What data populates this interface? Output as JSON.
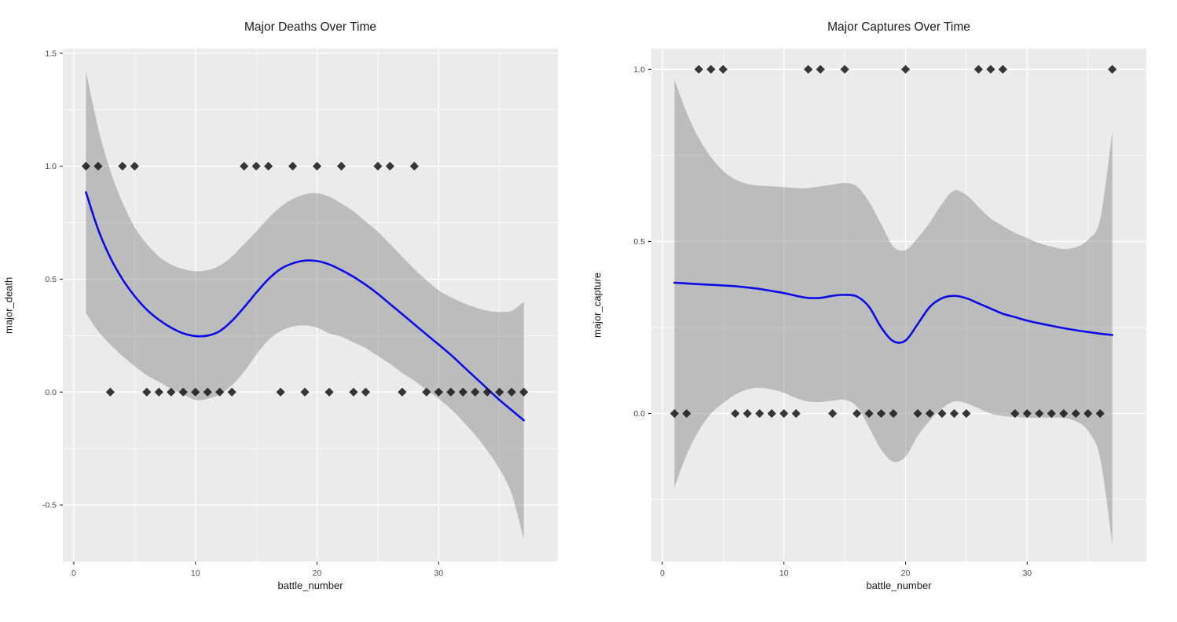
{
  "page": {
    "background": "#FFFFFF"
  },
  "style": {
    "panel_bg": "#EBEBEB",
    "grid_color": "#FFFFFF",
    "band_color": "#7C7C7C",
    "band_opacity": 0.42,
    "line_color": "#0B0BE8",
    "marker_color": "#151515",
    "marker_opacity": 0.85,
    "tick_text_color": "#4D4D4D",
    "tick_mark_color": "#333333",
    "text_color": "#1A1A1A"
  },
  "chart_data": [
    {
      "type": "scatter",
      "subtype": "scatter-with-loess-smooth-and-ci-band",
      "title": "Major Deaths Over Time",
      "xlabel": "battle_number",
      "ylabel": "major_death",
      "xlim": [
        -0.9,
        39.8
      ],
      "ylim": [
        -0.75,
        1.52
      ],
      "grid": true,
      "legend": "none",
      "x_ticks": {
        "values": [
          0,
          10,
          20,
          30
        ],
        "labels": [
          "0",
          "10",
          "20",
          "30"
        ]
      },
      "x_minor": [
        5,
        15,
        25,
        35
      ],
      "y_ticks": {
        "values": [
          1.5,
          1.0,
          0.5,
          0.0,
          -0.5
        ],
        "labels": [
          "1.5",
          "1.0",
          "0.5",
          "0.0",
          "-0.5"
        ]
      },
      "y_minor": [
        1.25,
        0.75,
        0.25,
        -0.25
      ],
      "points": {
        "x": [
          1,
          2,
          3,
          4,
          5,
          6,
          7,
          8,
          9,
          10,
          11,
          12,
          13,
          14,
          15,
          16,
          17,
          18,
          19,
          20,
          21,
          22,
          23,
          24,
          25,
          26,
          27,
          28,
          29,
          30,
          31,
          32,
          33,
          34,
          35,
          36,
          37
        ],
        "y": [
          1,
          1,
          0,
          1,
          1,
          0,
          0,
          0,
          0,
          0,
          0,
          0,
          0,
          1,
          1,
          1,
          0,
          1,
          0,
          1,
          0,
          1,
          0,
          0,
          1,
          1,
          0,
          1,
          0,
          0,
          0,
          0,
          0,
          0,
          0,
          0,
          0
        ]
      },
      "smooth": {
        "x": [
          1,
          2,
          3,
          4,
          5,
          6,
          7,
          8,
          9,
          10,
          11,
          12,
          13,
          14,
          15,
          16,
          17,
          18,
          19,
          20,
          21,
          22,
          23,
          24,
          25,
          26,
          27,
          28,
          29,
          30,
          31,
          32,
          33,
          34,
          35,
          36,
          37
        ],
        "y": [
          0.885,
          0.72,
          0.595,
          0.5,
          0.425,
          0.365,
          0.32,
          0.285,
          0.26,
          0.248,
          0.25,
          0.27,
          0.315,
          0.375,
          0.44,
          0.5,
          0.545,
          0.57,
          0.582,
          0.58,
          0.565,
          0.54,
          0.51,
          0.475,
          0.435,
          0.39,
          0.345,
          0.3,
          0.255,
          0.21,
          0.165,
          0.115,
          0.065,
          0.015,
          -0.035,
          -0.08,
          -0.125
        ]
      },
      "band": {
        "x": [
          1,
          2,
          3,
          4,
          5,
          6,
          7,
          8,
          9,
          10,
          11,
          12,
          13,
          14,
          15,
          16,
          17,
          18,
          19,
          20,
          21,
          22,
          23,
          24,
          25,
          26,
          27,
          28,
          29,
          30,
          31,
          32,
          33,
          34,
          35,
          36,
          37
        ],
        "upper": [
          1.42,
          1.17,
          0.98,
          0.84,
          0.73,
          0.655,
          0.6,
          0.565,
          0.545,
          0.535,
          0.54,
          0.56,
          0.6,
          0.655,
          0.71,
          0.77,
          0.82,
          0.855,
          0.875,
          0.88,
          0.865,
          0.835,
          0.8,
          0.755,
          0.71,
          0.655,
          0.6,
          0.545,
          0.495,
          0.45,
          0.42,
          0.395,
          0.375,
          0.36,
          0.355,
          0.36,
          0.4
        ],
        "lower": [
          0.35,
          0.27,
          0.21,
          0.16,
          0.115,
          0.075,
          0.045,
          0.015,
          -0.01,
          -0.035,
          -0.03,
          -0.01,
          0.03,
          0.09,
          0.165,
          0.23,
          0.27,
          0.29,
          0.295,
          0.285,
          0.26,
          0.245,
          0.22,
          0.195,
          0.16,
          0.125,
          0.085,
          0.05,
          0.01,
          -0.03,
          -0.075,
          -0.13,
          -0.19,
          -0.26,
          -0.34,
          -0.45,
          -0.65
        ]
      }
    },
    {
      "type": "scatter",
      "subtype": "scatter-with-loess-smooth-and-ci-band",
      "title": "Major Captures Over Time",
      "xlabel": "battle_number",
      "ylabel": "major_capture",
      "xlim": [
        -0.9,
        39.8
      ],
      "ylim": [
        -0.43,
        1.06
      ],
      "grid": true,
      "legend": "none",
      "x_ticks": {
        "values": [
          0,
          10,
          20,
          30
        ],
        "labels": [
          "0",
          "10",
          "20",
          "30"
        ]
      },
      "x_minor": [
        5,
        15,
        25,
        35
      ],
      "y_ticks": {
        "values": [
          1.0,
          0.5,
          0.0
        ],
        "labels": [
          "1.0",
          "0.5",
          "0.0"
        ]
      },
      "y_minor": [
        0.75,
        0.25,
        -0.25
      ],
      "points": {
        "x": [
          1,
          2,
          3,
          4,
          5,
          6,
          7,
          8,
          9,
          10,
          11,
          12,
          13,
          14,
          15,
          16,
          17,
          18,
          19,
          20,
          21,
          22,
          23,
          24,
          25,
          26,
          27,
          28,
          29,
          30,
          31,
          32,
          33,
          34,
          35,
          36,
          37
        ],
        "y": [
          0,
          0,
          1,
          1,
          1,
          0,
          0,
          0,
          0,
          0,
          0,
          1,
          1,
          0,
          1,
          0,
          0,
          0,
          0,
          1,
          0,
          0,
          0,
          0,
          0,
          1,
          1,
          1,
          0,
          0,
          0,
          0,
          0,
          0,
          0,
          0,
          1
        ]
      },
      "smooth": {
        "x": [
          1,
          2,
          3,
          4,
          5,
          6,
          7,
          8,
          9,
          10,
          11,
          12,
          13,
          14,
          15,
          16,
          17,
          18,
          19,
          20,
          21,
          22,
          23,
          24,
          25,
          26,
          27,
          28,
          29,
          30,
          31,
          32,
          33,
          34,
          35,
          36,
          37
        ],
        "y": [
          0.38,
          0.378,
          0.376,
          0.374,
          0.372,
          0.37,
          0.366,
          0.362,
          0.356,
          0.35,
          0.342,
          0.336,
          0.336,
          0.342,
          0.345,
          0.34,
          0.31,
          0.25,
          0.21,
          0.212,
          0.26,
          0.31,
          0.335,
          0.342,
          0.335,
          0.32,
          0.305,
          0.29,
          0.28,
          0.27,
          0.262,
          0.255,
          0.248,
          0.242,
          0.237,
          0.232,
          0.228
        ]
      },
      "band": {
        "x": [
          1,
          2,
          3,
          4,
          5,
          6,
          7,
          8,
          9,
          10,
          11,
          12,
          13,
          14,
          15,
          16,
          17,
          18,
          19,
          20,
          21,
          22,
          23,
          24,
          25,
          26,
          27,
          28,
          29,
          30,
          31,
          32,
          33,
          34,
          35,
          36,
          37
        ],
        "upper": [
          0.97,
          0.875,
          0.8,
          0.745,
          0.705,
          0.68,
          0.667,
          0.662,
          0.66,
          0.658,
          0.655,
          0.655,
          0.66,
          0.665,
          0.67,
          0.66,
          0.615,
          0.55,
          0.485,
          0.475,
          0.51,
          0.555,
          0.61,
          0.648,
          0.635,
          0.6,
          0.567,
          0.545,
          0.525,
          0.51,
          0.495,
          0.485,
          0.478,
          0.483,
          0.505,
          0.565,
          0.82
        ],
        "lower": [
          -0.215,
          -0.12,
          -0.05,
          0.0,
          0.03,
          0.055,
          0.07,
          0.075,
          0.07,
          0.06,
          0.045,
          0.035,
          0.033,
          0.037,
          0.04,
          0.02,
          -0.04,
          -0.105,
          -0.14,
          -0.125,
          -0.065,
          -0.02,
          0.015,
          0.035,
          0.03,
          0.015,
          0.0,
          -0.007,
          -0.01,
          -0.012,
          -0.012,
          -0.012,
          -0.013,
          -0.022,
          -0.05,
          -0.13,
          -0.38
        ]
      }
    }
  ]
}
